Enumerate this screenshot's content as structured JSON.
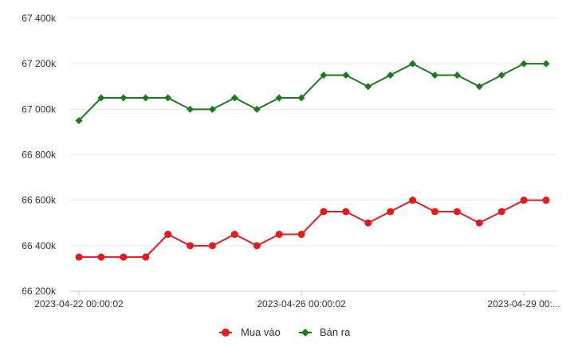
{
  "chart_data": {
    "type": "line",
    "title": "",
    "xlabel": "",
    "ylabel": "",
    "ylim": [
      66200,
      67400
    ],
    "y_ticks": [
      "66 200k",
      "66 400k",
      "66 600k",
      "66 800k",
      "67 000k",
      "67 200k",
      "67 400k"
    ],
    "y_tick_values": [
      66200,
      66400,
      66600,
      66800,
      67000,
      67200,
      67400
    ],
    "x_tick_labels": [
      "2023-04-22 00:00:02",
      "2023-04-26 00:00:02",
      "2023-04-29 00:..."
    ],
    "x_tick_indices": [
      0,
      10,
      20
    ],
    "grid": true,
    "legend_position": "bottom",
    "series": [
      {
        "name": "Mua vào",
        "color": "#e41a1c",
        "marker": "circle",
        "values": [
          66350,
          66350,
          66350,
          66350,
          66450,
          66400,
          66400,
          66450,
          66400,
          66450,
          66450,
          66550,
          66550,
          66500,
          66550,
          66600,
          66550,
          66550,
          66500,
          66550,
          66600,
          66600
        ]
      },
      {
        "name": "Bán ra",
        "color": "#1b7a1b",
        "marker": "diamond",
        "values": [
          66950,
          67050,
          67050,
          67050,
          67050,
          67000,
          67000,
          67050,
          67000,
          67050,
          67050,
          67150,
          67150,
          67100,
          67150,
          67200,
          67150,
          67150,
          67100,
          67150,
          67200,
          67200
        ]
      }
    ]
  }
}
